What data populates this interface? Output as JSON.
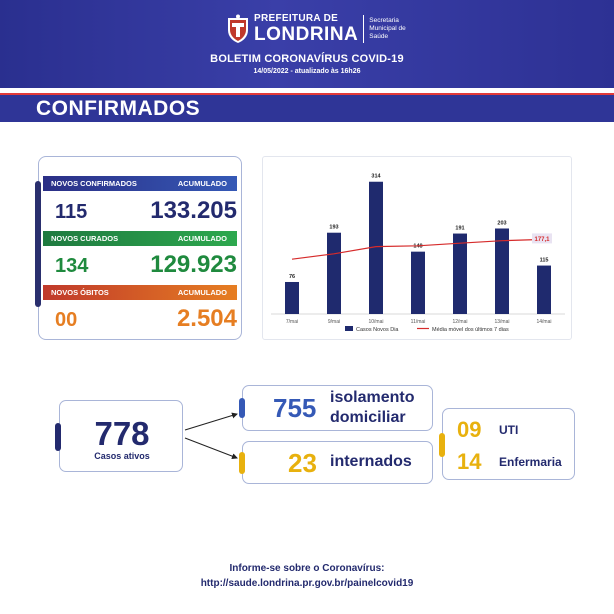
{
  "header": {
    "brand_top": "PREFEITURA DE",
    "brand_name": "LONDRINA",
    "brand_sub": "Secretaria Municipal de Saúde",
    "bulletin_title": "BOLETIM CORONAVÍRUS COVID-19",
    "bulletin_date": "14/05/2022 - atualizado às 16h26"
  },
  "section": {
    "title": "CONFIRMADOS"
  },
  "stats": {
    "confirmed": {
      "label": "NOVOS CONFIRMADOS",
      "acc_label": "ACUMULADO",
      "new": "115",
      "total": "133.205"
    },
    "recovered": {
      "label": "NOVOS CURADOS",
      "acc_label": "ACUMULADO",
      "new": "134",
      "total": "129.923"
    },
    "deaths": {
      "label": "NOVOS ÓBITOS",
      "acc_label": "ACUMULADO",
      "new": "00",
      "total": "2.504"
    }
  },
  "chart_data": {
    "type": "bar",
    "categories": [
      "7/mai",
      "9/mai",
      "10/mai",
      "11/mai",
      "12/mai",
      "13/mai",
      "14/mai"
    ],
    "series": [
      {
        "name": "Casos Novos Dia",
        "type": "bar",
        "values": [
          76,
          193,
          314,
          148,
          191,
          203,
          115
        ],
        "color": "#1f2a6e"
      },
      {
        "name": "Média móvel dos últimos 7 dias",
        "type": "line",
        "values": [
          130,
          143,
          160,
          162,
          168,
          174,
          177.1
        ],
        "color": "#d62b2b"
      }
    ],
    "annotation": "177,1",
    "ylim": [
      0,
      330
    ],
    "legend": "bottom"
  },
  "active": {
    "number": "778",
    "label": "Casos ativos"
  },
  "isolation": {
    "number": "755",
    "label_line1": "isolamento",
    "label_line2": "domiciliar"
  },
  "hospitalized": {
    "number": "23",
    "label": "internados"
  },
  "hospital_breakdown": {
    "uti": {
      "number": "09",
      "label": "UTI"
    },
    "ward": {
      "number": "14",
      "label": "Enfermaria"
    }
  },
  "footer": {
    "line1": "Informe-se sobre o Coronavírus:",
    "line2": "http://saude.londrina.pr.gov.br/painelcovid19"
  },
  "colors": {
    "navy": "#2f3597",
    "red": "#e23a3a",
    "blue_text": "#232a6e",
    "green": "#1f8a3e",
    "orange": "#e67e22",
    "yellow": "#e8b10e"
  }
}
